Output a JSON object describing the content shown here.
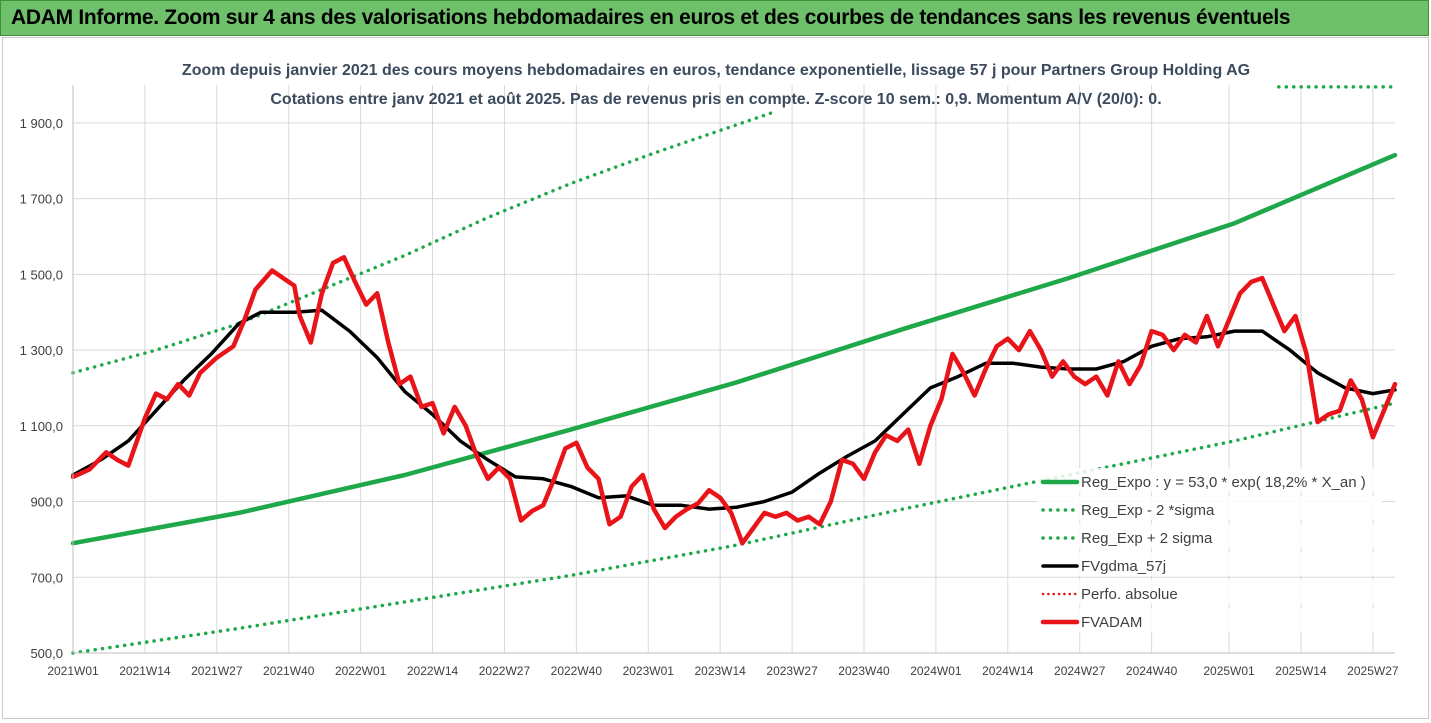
{
  "header": {
    "banner_title": "ADAM Informe. Zoom sur 4 ans des valorisations hebdomadaires en euros et des courbes de tendances sans les revenus éventuels"
  },
  "colors": {
    "banner_bg": "#6fc06a",
    "trend_green": "#1fa84a",
    "price_red": "#e8141a",
    "smooth_black": "#000000",
    "grid": "#d9d9d9",
    "title_text": "#3b4a5c"
  },
  "chart_data": {
    "type": "line",
    "title": "Zoom depuis janvier 2021 des cours moyens hebdomadaires en euros, tendance exponentielle, lissage 57 j pour Partners Group Holding AG",
    "subtitle": "Cotations entre janv 2021 et août 2025.  Pas de revenus pris en compte. Z-score 10 sem.: 0,9. Momentum A/V (20/0): 0.",
    "xlabel": "",
    "ylabel": "",
    "ylim": [
      500,
      2000
    ],
    "x_range": [
      0,
      239
    ],
    "x_ticks": [
      {
        "label": "2021W01",
        "x": 0
      },
      {
        "label": "2021W14",
        "x": 13
      },
      {
        "label": "2021W27",
        "x": 26
      },
      {
        "label": "2021W40",
        "x": 39
      },
      {
        "label": "2022W01",
        "x": 52
      },
      {
        "label": "2022W14",
        "x": 65
      },
      {
        "label": "2022W27",
        "x": 78
      },
      {
        "label": "2022W40",
        "x": 91
      },
      {
        "label": "2023W01",
        "x": 104
      },
      {
        "label": "2023W14",
        "x": 117
      },
      {
        "label": "2023W27",
        "x": 130
      },
      {
        "label": "2023W40",
        "x": 143
      },
      {
        "label": "2024W01",
        "x": 156
      },
      {
        "label": "2024W14",
        "x": 169
      },
      {
        "label": "2024W27",
        "x": 182
      },
      {
        "label": "2024W40",
        "x": 195
      },
      {
        "label": "2025W01",
        "x": 209
      },
      {
        "label": "2025W14",
        "x": 222
      },
      {
        "label": "2025W27",
        "x": 235
      }
    ],
    "y_ticks": [
      "500,0",
      "700,0",
      "900,0",
      "1 100,0",
      "1 300,0",
      "1 500,0",
      "1 700,0",
      "1 900,0"
    ],
    "y_tick_values": [
      500,
      700,
      900,
      1100,
      1300,
      1500,
      1700,
      1900
    ],
    "grid": true,
    "legend_position": "right",
    "series": [
      {
        "name": "Reg_Expo : y = 53,0 * exp( 18,2% *  X_an )",
        "style": "solid",
        "color": "#1fa84a",
        "width": 4.5,
        "points": [
          [
            0,
            790
          ],
          [
            30,
            870
          ],
          [
            60,
            970
          ],
          [
            90,
            1090
          ],
          [
            120,
            1215
          ],
          [
            150,
            1355
          ],
          [
            180,
            1490
          ],
          [
            210,
            1635
          ],
          [
            239,
            1815
          ]
        ]
      },
      {
        "name": "Reg_Exp - 2 *sigma",
        "style": "dotted",
        "color": "#1fa84a",
        "width": 3.5,
        "points": [
          [
            0,
            500
          ],
          [
            30,
            565
          ],
          [
            60,
            635
          ],
          [
            90,
            705
          ],
          [
            120,
            785
          ],
          [
            150,
            880
          ],
          [
            180,
            970
          ],
          [
            210,
            1060
          ],
          [
            239,
            1160
          ]
        ]
      },
      {
        "name": "Reg_Exp + 2 sigma",
        "style": "dotted",
        "color": "#1fa84a",
        "width": 3.5,
        "points": [
          [
            0,
            1240
          ],
          [
            15,
            1300
          ],
          [
            30,
            1370
          ],
          [
            45,
            1460
          ],
          [
            60,
            1550
          ],
          [
            75,
            1650
          ],
          [
            90,
            1740
          ],
          [
            105,
            1820
          ],
          [
            117,
            1880
          ],
          [
            127,
            1930
          ]
        ]
      },
      {
        "name": "Reg_Exp + 2 sigma (suite)",
        "style": "dotted",
        "color": "#1fa84a",
        "width": 3.5,
        "in_legend": false,
        "points": [
          [
            218,
            1995
          ],
          [
            239,
            1995
          ]
        ]
      },
      {
        "name": "FVgdma_57j",
        "style": "solid",
        "color": "#000000",
        "width": 3.5,
        "points": [
          [
            0,
            970
          ],
          [
            5,
            1010
          ],
          [
            10,
            1060
          ],
          [
            15,
            1140
          ],
          [
            20,
            1220
          ],
          [
            25,
            1290
          ],
          [
            30,
            1370
          ],
          [
            34,
            1400
          ],
          [
            40,
            1400
          ],
          [
            45,
            1405
          ],
          [
            50,
            1350
          ],
          [
            55,
            1280
          ],
          [
            60,
            1190
          ],
          [
            65,
            1130
          ],
          [
            70,
            1060
          ],
          [
            75,
            1010
          ],
          [
            80,
            965
          ],
          [
            85,
            960
          ],
          [
            90,
            940
          ],
          [
            95,
            910
          ],
          [
            100,
            915
          ],
          [
            105,
            890
          ],
          [
            110,
            890
          ],
          [
            115,
            880
          ],
          [
            120,
            885
          ],
          [
            125,
            900
          ],
          [
            130,
            925
          ],
          [
            135,
            975
          ],
          [
            140,
            1020
          ],
          [
            145,
            1060
          ],
          [
            150,
            1130
          ],
          [
            155,
            1200
          ],
          [
            160,
            1230
          ],
          [
            165,
            1265
          ],
          [
            170,
            1265
          ],
          [
            175,
            1255
          ],
          [
            180,
            1250
          ],
          [
            185,
            1250
          ],
          [
            190,
            1270
          ],
          [
            195,
            1310
          ],
          [
            200,
            1330
          ],
          [
            205,
            1335
          ],
          [
            210,
            1350
          ],
          [
            215,
            1350
          ],
          [
            220,
            1300
          ],
          [
            225,
            1240
          ],
          [
            230,
            1200
          ],
          [
            235,
            1185
          ],
          [
            239,
            1195
          ]
        ]
      },
      {
        "name": "Perfo. absolue",
        "style": "dotted",
        "color": "#e8141a",
        "width": 2.5,
        "points": []
      },
      {
        "name": "FVADAM",
        "style": "solid",
        "color": "#e8141a",
        "width": 4.5,
        "points": [
          [
            0,
            965
          ],
          [
            3,
            985
          ],
          [
            6,
            1030
          ],
          [
            8,
            1010
          ],
          [
            10,
            995
          ],
          [
            13,
            1120
          ],
          [
            15,
            1185
          ],
          [
            17,
            1170
          ],
          [
            19,
            1210
          ],
          [
            21,
            1180
          ],
          [
            23,
            1240
          ],
          [
            26,
            1280
          ],
          [
            29,
            1310
          ],
          [
            31,
            1380
          ],
          [
            33,
            1460
          ],
          [
            36,
            1510
          ],
          [
            38,
            1490
          ],
          [
            40,
            1470
          ],
          [
            41,
            1390
          ],
          [
            43,
            1320
          ],
          [
            45,
            1450
          ],
          [
            47,
            1530
          ],
          [
            49,
            1545
          ],
          [
            51,
            1480
          ],
          [
            53,
            1420
          ],
          [
            55,
            1450
          ],
          [
            57,
            1320
          ],
          [
            59,
            1210
          ],
          [
            61,
            1230
          ],
          [
            63,
            1150
          ],
          [
            65,
            1160
          ],
          [
            67,
            1080
          ],
          [
            69,
            1150
          ],
          [
            71,
            1100
          ],
          [
            73,
            1020
          ],
          [
            75,
            960
          ],
          [
            77,
            990
          ],
          [
            79,
            960
          ],
          [
            81,
            850
          ],
          [
            83,
            875
          ],
          [
            85,
            890
          ],
          [
            87,
            960
          ],
          [
            89,
            1040
          ],
          [
            91,
            1055
          ],
          [
            93,
            990
          ],
          [
            95,
            960
          ],
          [
            97,
            840
          ],
          [
            99,
            860
          ],
          [
            101,
            940
          ],
          [
            103,
            970
          ],
          [
            105,
            880
          ],
          [
            107,
            830
          ],
          [
            109,
            860
          ],
          [
            111,
            880
          ],
          [
            113,
            895
          ],
          [
            115,
            930
          ],
          [
            117,
            910
          ],
          [
            119,
            870
          ],
          [
            121,
            790
          ],
          [
            123,
            830
          ],
          [
            125,
            870
          ],
          [
            127,
            860
          ],
          [
            129,
            870
          ],
          [
            131,
            850
          ],
          [
            133,
            860
          ],
          [
            135,
            840
          ],
          [
            137,
            900
          ],
          [
            139,
            1010
          ],
          [
            141,
            1000
          ],
          [
            143,
            960
          ],
          [
            145,
            1030
          ],
          [
            147,
            1075
          ],
          [
            149,
            1060
          ],
          [
            151,
            1090
          ],
          [
            153,
            1000
          ],
          [
            155,
            1100
          ],
          [
            157,
            1170
          ],
          [
            159,
            1290
          ],
          [
            161,
            1240
          ],
          [
            163,
            1180
          ],
          [
            165,
            1250
          ],
          [
            167,
            1310
          ],
          [
            169,
            1330
          ],
          [
            171,
            1300
          ],
          [
            173,
            1350
          ],
          [
            175,
            1300
          ],
          [
            177,
            1230
          ],
          [
            179,
            1270
          ],
          [
            181,
            1230
          ],
          [
            183,
            1210
          ],
          [
            185,
            1230
          ],
          [
            187,
            1180
          ],
          [
            189,
            1270
          ],
          [
            191,
            1210
          ],
          [
            193,
            1260
          ],
          [
            195,
            1350
          ],
          [
            197,
            1340
          ],
          [
            199,
            1300
          ],
          [
            201,
            1340
          ],
          [
            203,
            1320
          ],
          [
            205,
            1390
          ],
          [
            207,
            1310
          ],
          [
            209,
            1380
          ],
          [
            211,
            1450
          ],
          [
            213,
            1480
          ],
          [
            215,
            1490
          ],
          [
            217,
            1420
          ],
          [
            219,
            1350
          ],
          [
            221,
            1390
          ],
          [
            223,
            1290
          ],
          [
            225,
            1110
          ],
          [
            227,
            1130
          ],
          [
            229,
            1140
          ],
          [
            231,
            1220
          ],
          [
            233,
            1170
          ],
          [
            235,
            1070
          ],
          [
            237,
            1140
          ],
          [
            239,
            1210
          ]
        ]
      }
    ]
  }
}
